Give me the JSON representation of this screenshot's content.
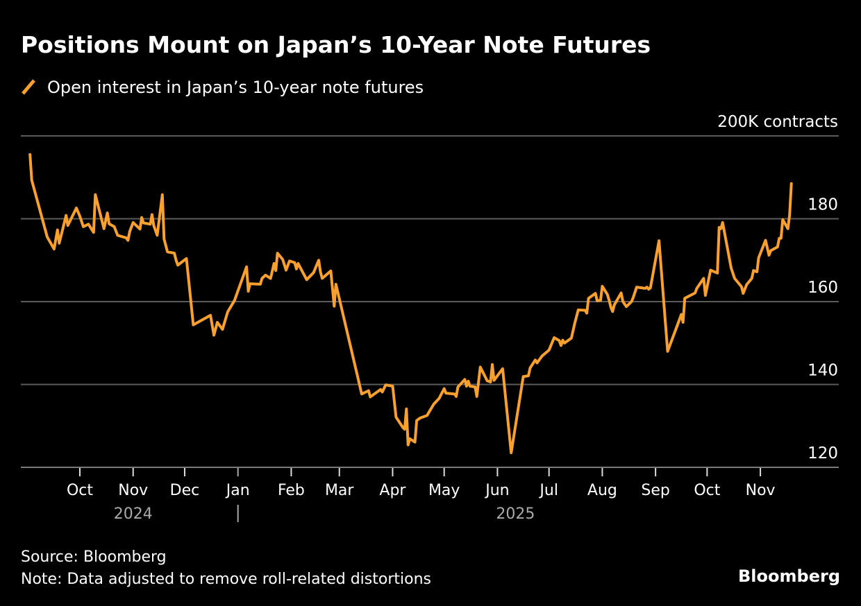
{
  "chart_data": {
    "type": "line",
    "title": "Positions Mount on Japan’s 10-Year Note Futures",
    "unit_label": "200K contracts",
    "ylim": [
      120,
      200
    ],
    "yticks": [
      {
        "value": 200,
        "label": "200K contracts"
      },
      {
        "value": 180,
        "label": "180"
      },
      {
        "value": 160,
        "label": "160"
      },
      {
        "value": 140,
        "label": "140"
      },
      {
        "value": 120,
        "label": "120"
      }
    ],
    "grid": true,
    "legend_placement": "top-left",
    "xticks": [
      {
        "date": "2024-10-01",
        "label": "Oct"
      },
      {
        "date": "2024-11-01",
        "label": "Nov"
      },
      {
        "date": "2024-12-01",
        "label": "Dec"
      },
      {
        "date": "2025-01-01",
        "label": "Jan"
      },
      {
        "date": "2025-02-01",
        "label": "Feb"
      },
      {
        "date": "2025-03-01",
        "label": "Mar"
      },
      {
        "date": "2025-04-01",
        "label": "Apr"
      },
      {
        "date": "2025-05-01",
        "label": "May"
      },
      {
        "date": "2025-06-01",
        "label": "Jun"
      },
      {
        "date": "2025-07-01",
        "label": "Jul"
      },
      {
        "date": "2025-08-01",
        "label": "Aug"
      },
      {
        "date": "2025-09-01",
        "label": "Sep"
      },
      {
        "date": "2025-10-01",
        "label": "Oct"
      },
      {
        "date": "2025-11-01",
        "label": "Nov"
      }
    ],
    "year_labels": [
      {
        "date": "2024-11-01",
        "label": "2024"
      },
      {
        "date": "2025-06-01",
        "label": "2025"
      }
    ],
    "series": [
      {
        "name": "Open interest in Japan’s 10-year note futures",
        "color": "#f9a02f",
        "points": [
          [
            "2024-09-02",
            195.5
          ],
          [
            "2024-09-03",
            189.3
          ],
          [
            "2024-09-12",
            175.6
          ],
          [
            "2024-09-16",
            172.7
          ],
          [
            "2024-09-18",
            177.3
          ],
          [
            "2024-09-19",
            174.1
          ],
          [
            "2024-09-23",
            180.8
          ],
          [
            "2024-09-24",
            178.4
          ],
          [
            "2024-09-29",
            182.6
          ],
          [
            "2024-10-01",
            180.6
          ],
          [
            "2024-10-03",
            178.1
          ],
          [
            "2024-10-06",
            178.7
          ],
          [
            "2024-10-09",
            176.7
          ],
          [
            "2024-10-10",
            185.8
          ],
          [
            "2024-10-15",
            177.6
          ],
          [
            "2024-10-17",
            181.4
          ],
          [
            "2024-10-18",
            178.8
          ],
          [
            "2024-10-21",
            178.1
          ],
          [
            "2024-10-23",
            176.0
          ],
          [
            "2024-10-28",
            175.4
          ],
          [
            "2024-10-29",
            174.8
          ],
          [
            "2024-10-30",
            176.9
          ],
          [
            "2024-11-01",
            179.1
          ],
          [
            "2024-11-05",
            177.5
          ],
          [
            "2024-11-06",
            180.3
          ],
          [
            "2024-11-07",
            179.0
          ],
          [
            "2024-11-11",
            178.7
          ],
          [
            "2024-11-12",
            181.0
          ],
          [
            "2024-11-13",
            178.4
          ],
          [
            "2024-11-15",
            176.0
          ],
          [
            "2024-11-18",
            185.8
          ],
          [
            "2024-11-19",
            175.1
          ],
          [
            "2024-11-21",
            172.0
          ],
          [
            "2024-11-25",
            171.7
          ],
          [
            "2024-11-26",
            170.0
          ],
          [
            "2024-11-27",
            168.8
          ],
          [
            "2024-12-02",
            170.4
          ],
          [
            "2024-12-06",
            154.4
          ],
          [
            "2024-12-16",
            156.7
          ],
          [
            "2024-12-18",
            151.9
          ],
          [
            "2024-12-20",
            155.0
          ],
          [
            "2024-12-23",
            153.3
          ],
          [
            "2024-12-26",
            157.5
          ],
          [
            "2024-12-30",
            160.3
          ],
          [
            "2025-01-06",
            168.4
          ],
          [
            "2025-01-07",
            162.5
          ],
          [
            "2025-01-08",
            164.3
          ],
          [
            "2025-01-14",
            164.2
          ],
          [
            "2025-01-15",
            165.6
          ],
          [
            "2025-01-17",
            166.4
          ],
          [
            "2025-01-20",
            165.6
          ],
          [
            "2025-01-22",
            169.2
          ],
          [
            "2025-01-23",
            167.5
          ],
          [
            "2025-01-24",
            171.7
          ],
          [
            "2025-01-27",
            170.2
          ],
          [
            "2025-01-29",
            167.6
          ],
          [
            "2025-01-31",
            169.8
          ],
          [
            "2025-02-03",
            169.4
          ],
          [
            "2025-02-04",
            167.9
          ],
          [
            "2025-02-05",
            169.2
          ],
          [
            "2025-02-10",
            165.3
          ],
          [
            "2025-02-14",
            167.0
          ],
          [
            "2025-02-17",
            170.0
          ],
          [
            "2025-02-18",
            167.2
          ],
          [
            "2025-02-19",
            165.6
          ],
          [
            "2025-02-24",
            167.4
          ],
          [
            "2025-02-26",
            158.9
          ],
          [
            "2025-02-27",
            164.2
          ],
          [
            "2025-03-14",
            137.7
          ],
          [
            "2025-03-18",
            138.5
          ],
          [
            "2025-03-19",
            137.0
          ],
          [
            "2025-03-25",
            138.8
          ],
          [
            "2025-03-26",
            138.2
          ],
          [
            "2025-03-28",
            139.9
          ],
          [
            "2025-04-01",
            139.6
          ],
          [
            "2025-04-03",
            132.1
          ],
          [
            "2025-04-07",
            129.6
          ],
          [
            "2025-04-08",
            129.2
          ],
          [
            "2025-04-09",
            134.1
          ],
          [
            "2025-04-10",
            125.4
          ],
          [
            "2025-04-11",
            126.9
          ],
          [
            "2025-04-14",
            126.1
          ],
          [
            "2025-04-15",
            131.3
          ],
          [
            "2025-04-17",
            131.9
          ],
          [
            "2025-04-21",
            132.5
          ],
          [
            "2025-04-23",
            133.9
          ],
          [
            "2025-04-25",
            135.3
          ],
          [
            "2025-04-28",
            136.6
          ],
          [
            "2025-05-01",
            139.0
          ],
          [
            "2025-05-02",
            137.9
          ],
          [
            "2025-05-07",
            137.7
          ],
          [
            "2025-05-08",
            137.1
          ],
          [
            "2025-05-09",
            139.4
          ],
          [
            "2025-05-13",
            141.2
          ],
          [
            "2025-05-14",
            139.6
          ],
          [
            "2025-05-15",
            140.8
          ],
          [
            "2025-05-16",
            139.6
          ],
          [
            "2025-05-19",
            139.4
          ],
          [
            "2025-05-20",
            137.1
          ],
          [
            "2025-05-22",
            144.2
          ],
          [
            "2025-05-26",
            140.9
          ],
          [
            "2025-05-28",
            140.6
          ],
          [
            "2025-05-29",
            144.8
          ],
          [
            "2025-05-30",
            141.0
          ],
          [
            "2025-06-04",
            143.8
          ],
          [
            "2025-06-09",
            123.5
          ],
          [
            "2025-06-16",
            141.9
          ],
          [
            "2025-06-19",
            142.1
          ],
          [
            "2025-06-20",
            144.0
          ],
          [
            "2025-06-23",
            145.9
          ],
          [
            "2025-06-24",
            145.2
          ],
          [
            "2025-06-27",
            146.9
          ],
          [
            "2025-07-01",
            148.3
          ],
          [
            "2025-07-04",
            151.3
          ],
          [
            "2025-07-07",
            150.6
          ],
          [
            "2025-07-08",
            149.4
          ],
          [
            "2025-07-09",
            150.7
          ],
          [
            "2025-07-10",
            150.0
          ],
          [
            "2025-07-14",
            151.2
          ],
          [
            "2025-07-16",
            154.8
          ],
          [
            "2025-07-18",
            158.0
          ],
          [
            "2025-07-22",
            157.9
          ],
          [
            "2025-07-23",
            157.2
          ],
          [
            "2025-07-24",
            160.8
          ],
          [
            "2025-07-28",
            162.0
          ],
          [
            "2025-07-29",
            160.2
          ],
          [
            "2025-07-31",
            160.3
          ],
          [
            "2025-08-01",
            163.7
          ],
          [
            "2025-08-04",
            161.7
          ],
          [
            "2025-08-05",
            160.3
          ],
          [
            "2025-08-06",
            158.6
          ],
          [
            "2025-08-07",
            157.6
          ],
          [
            "2025-08-08",
            159.2
          ],
          [
            "2025-08-12",
            162.1
          ],
          [
            "2025-08-13",
            160.0
          ],
          [
            "2025-08-15",
            158.8
          ],
          [
            "2025-08-18",
            160.0
          ],
          [
            "2025-08-19",
            161.0
          ],
          [
            "2025-08-21",
            163.5
          ],
          [
            "2025-08-26",
            163.2
          ],
          [
            "2025-08-27",
            163.5
          ],
          [
            "2025-08-28",
            163.0
          ],
          [
            "2025-08-29",
            163.3
          ],
          [
            "2025-09-03",
            174.7
          ],
          [
            "2025-09-08",
            148.0
          ],
          [
            "2025-09-16",
            156.9
          ],
          [
            "2025-09-17",
            155.0
          ],
          [
            "2025-09-18",
            160.8
          ],
          [
            "2025-09-24",
            162.1
          ],
          [
            "2025-09-25",
            163.2
          ],
          [
            "2025-09-29",
            165.6
          ],
          [
            "2025-09-30",
            161.5
          ],
          [
            "2025-10-03",
            167.6
          ],
          [
            "2025-10-07",
            166.9
          ],
          [
            "2025-10-08",
            177.9
          ],
          [
            "2025-10-09",
            177.6
          ],
          [
            "2025-10-10",
            179.1
          ],
          [
            "2025-10-15",
            168.1
          ],
          [
            "2025-10-17",
            165.6
          ],
          [
            "2025-10-21",
            163.6
          ],
          [
            "2025-10-22",
            162.0
          ],
          [
            "2025-10-24",
            164.1
          ],
          [
            "2025-10-27",
            165.6
          ],
          [
            "2025-10-28",
            167.5
          ],
          [
            "2025-10-30",
            167.2
          ],
          [
            "2025-10-31",
            170.6
          ],
          [
            "2025-11-04",
            174.8
          ],
          [
            "2025-11-06",
            171.2
          ],
          [
            "2025-11-07",
            172.3
          ],
          [
            "2025-11-11",
            173.2
          ],
          [
            "2025-11-12",
            175.3
          ],
          [
            "2025-11-13",
            175.3
          ],
          [
            "2025-11-14",
            179.8
          ],
          [
            "2025-11-17",
            177.6
          ],
          [
            "2025-11-18",
            180.9
          ],
          [
            "2025-11-19",
            188.5
          ]
        ]
      }
    ],
    "source": "Source: Bloomberg",
    "note": "Note: Data adjusted to remove roll-related distortions",
    "brand": "Bloomberg"
  }
}
